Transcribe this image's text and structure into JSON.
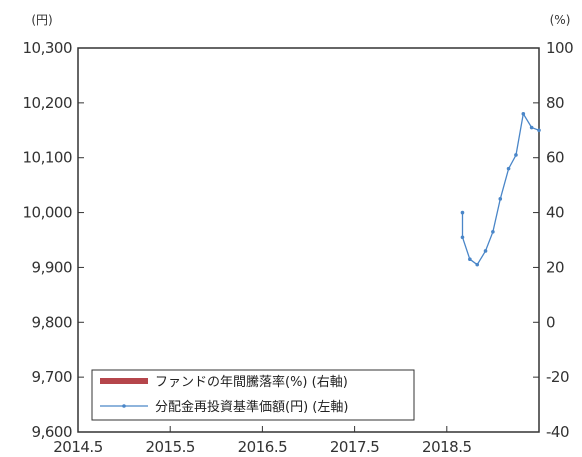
{
  "chart_data": {
    "type": "line",
    "left_unit": "(円)",
    "right_unit": "(%)",
    "x_ticks": [
      "2014.5",
      "2015.5",
      "2016.5",
      "2017.5",
      "2018.5"
    ],
    "y_left": {
      "ticks": [
        "10,300",
        "10,200",
        "10,100",
        "10,000",
        "9,900",
        "9,800",
        "9,700",
        "9,600"
      ],
      "ylim": [
        9600,
        10300
      ]
    },
    "y_right": {
      "ticks": [
        "100",
        "80",
        "60",
        "40",
        "20",
        "0",
        "-20",
        "-40"
      ],
      "ylim": [
        -40,
        100
      ]
    },
    "xlim": [
      2014.5,
      2019.5
    ],
    "grid": false,
    "legend_position": "bottom-left",
    "series": [
      {
        "name": "ファンドの年間騰落率(%) (右軸)",
        "kind": "bar",
        "axis": "right",
        "color": "#b5454b",
        "values": []
      },
      {
        "name": "分配金再投資基準価額(円) (左軸)",
        "kind": "line",
        "axis": "left",
        "color": "#4a86c8",
        "x": [
          2018.67,
          2018.67,
          2018.75,
          2018.83,
          2018.92,
          2019.0,
          2019.08,
          2019.17,
          2019.25,
          2019.33,
          2019.42,
          2019.5
        ],
        "values": [
          10000,
          9955,
          9915,
          9905,
          9930,
          9965,
          10025,
          10080,
          10105,
          10180,
          10155,
          10150
        ]
      }
    ]
  }
}
